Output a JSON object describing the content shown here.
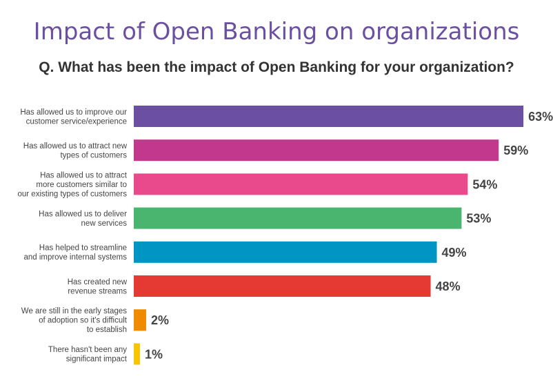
{
  "title": "Impact of Open Banking on organizations",
  "subtitle": "Q. What has been the impact of Open Banking for your organization?",
  "chart_data": {
    "type": "bar",
    "orientation": "horizontal",
    "title": "Impact of Open Banking on organizations",
    "subtitle": "Q. What has been the impact of Open Banking for your organization?",
    "categories": [
      [
        "Has allowed us to improve our",
        "customer service/experience"
      ],
      [
        "Has allowed us to attract new",
        "types of customers"
      ],
      [
        "Has allowed us to attract",
        "more customers similar to",
        "our existing types of customers"
      ],
      [
        "Has allowed us to deliver",
        "new services"
      ],
      [
        "Has helped to streamline",
        "and improve internal systems"
      ],
      [
        "Has created new",
        "revenue streams"
      ],
      [
        "We are still in the early stages",
        "of adoption so it's difficult",
        "to establish"
      ],
      [
        "There hasn't been any",
        "significant impact"
      ]
    ],
    "values": [
      63,
      59,
      54,
      53,
      49,
      48,
      2,
      1
    ],
    "value_labels": [
      "63%",
      "59%",
      "54%",
      "53%",
      "49%",
      "48%",
      "2%",
      "1%"
    ],
    "colors": [
      "#6a4fa3",
      "#c2388c",
      "#e84a8c",
      "#4ab56f",
      "#0095c2",
      "#e53a33",
      "#f08a00",
      "#f7c400"
    ],
    "unit": "%",
    "grid": false,
    "legend": "none"
  }
}
